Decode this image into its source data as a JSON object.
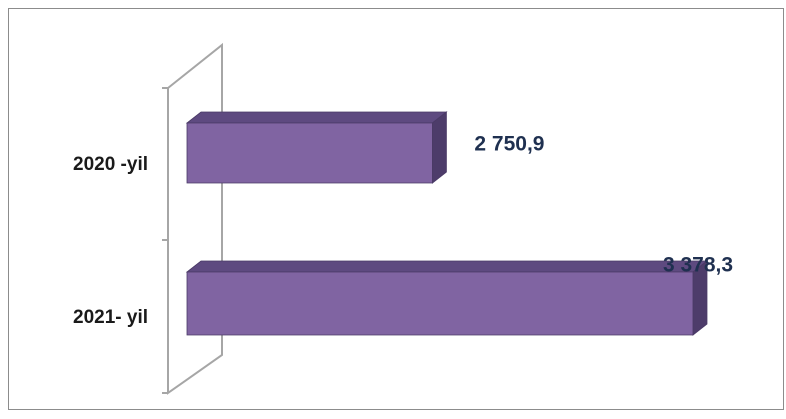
{
  "chart_data": {
    "type": "bar3d",
    "orientation": "horizontal",
    "categories": [
      "2020 -yil",
      "2021- yil"
    ],
    "values": [
      2750.9,
      3378.3
    ],
    "value_labels": [
      "2 750,9",
      "3 378,3"
    ],
    "color": "#8064a2",
    "xlim": [
      2160,
      3400
    ]
  }
}
